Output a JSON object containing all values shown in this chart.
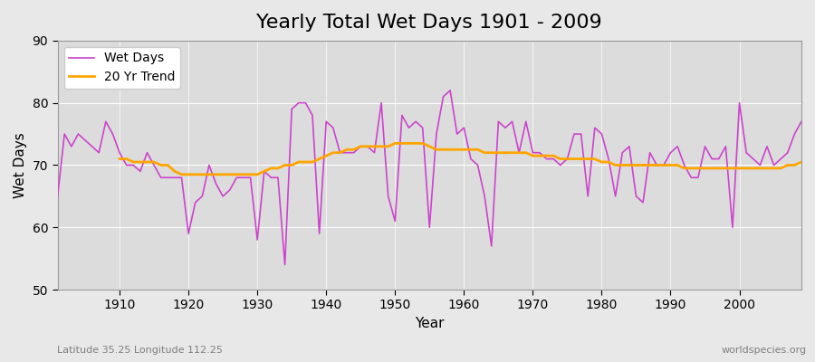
{
  "title": "Yearly Total Wet Days 1901 - 2009",
  "xlabel": "Year",
  "ylabel": "Wet Days",
  "subtitle": "Latitude 35.25 Longitude 112.25",
  "watermark": "worldspecies.org",
  "years": [
    1901,
    1902,
    1903,
    1904,
    1905,
    1906,
    1907,
    1908,
    1909,
    1910,
    1911,
    1912,
    1913,
    1914,
    1915,
    1916,
    1917,
    1918,
    1919,
    1920,
    1921,
    1922,
    1923,
    1924,
    1925,
    1926,
    1927,
    1928,
    1929,
    1930,
    1931,
    1932,
    1933,
    1934,
    1935,
    1936,
    1937,
    1938,
    1939,
    1940,
    1941,
    1942,
    1943,
    1944,
    1945,
    1946,
    1947,
    1948,
    1949,
    1950,
    1951,
    1952,
    1953,
    1954,
    1955,
    1956,
    1957,
    1958,
    1959,
    1960,
    1961,
    1962,
    1963,
    1964,
    1965,
    1966,
    1967,
    1968,
    1969,
    1970,
    1971,
    1972,
    1973,
    1974,
    1975,
    1976,
    1977,
    1978,
    1979,
    1980,
    1981,
    1982,
    1983,
    1984,
    1985,
    1986,
    1987,
    1988,
    1989,
    1990,
    1991,
    1992,
    1993,
    1994,
    1995,
    1996,
    1997,
    1998,
    1999,
    2000,
    2001,
    2002,
    2003,
    2004,
    2005,
    2006,
    2007,
    2008,
    2009
  ],
  "wet_days": [
    65,
    75,
    73,
    75,
    74,
    73,
    72,
    77,
    75,
    72,
    70,
    70,
    69,
    72,
    70,
    68,
    68,
    68,
    68,
    59,
    64,
    65,
    70,
    67,
    65,
    66,
    68,
    68,
    68,
    58,
    69,
    68,
    68,
    54,
    79,
    80,
    80,
    78,
    59,
    77,
    76,
    72,
    72,
    72,
    73,
    73,
    72,
    80,
    65,
    61,
    78,
    76,
    77,
    76,
    60,
    75,
    81,
    82,
    75,
    76,
    71,
    70,
    65,
    57,
    77,
    76,
    77,
    72,
    77,
    72,
    72,
    71,
    71,
    70,
    71,
    75,
    75,
    65,
    76,
    75,
    71,
    65,
    72,
    73,
    65,
    64,
    72,
    70,
    70,
    72,
    73,
    70,
    68,
    68,
    73,
    71,
    71,
    73,
    60,
    80,
    72,
    71,
    70,
    73,
    70,
    71,
    72,
    75,
    77
  ],
  "trend_years": [
    1910,
    1911,
    1912,
    1913,
    1914,
    1915,
    1916,
    1917,
    1918,
    1919,
    1920,
    1921,
    1922,
    1923,
    1924,
    1925,
    1926,
    1927,
    1928,
    1929,
    1930,
    1931,
    1932,
    1933,
    1934,
    1935,
    1936,
    1937,
    1938,
    1939,
    1940,
    1941,
    1942,
    1943,
    1944,
    1945,
    1946,
    1947,
    1948,
    1949,
    1950,
    1951,
    1952,
    1953,
    1954,
    1955,
    1956,
    1957,
    1958,
    1959,
    1960,
    1961,
    1962,
    1963,
    1964,
    1965,
    1966,
    1967,
    1968,
    1969,
    1970,
    1971,
    1972,
    1973,
    1974,
    1975,
    1976,
    1977,
    1978,
    1979,
    1980,
    1981,
    1982,
    1983,
    1984,
    1985,
    1986,
    1987,
    1988,
    1989,
    1990,
    1991,
    1992,
    1993,
    1994,
    1995,
    1996,
    1997,
    1998,
    1999,
    2000,
    2001,
    2002,
    2003,
    2004,
    2005,
    2006,
    2007,
    2008,
    2009
  ],
  "trend_values": [
    71.0,
    71.0,
    70.5,
    70.5,
    70.5,
    70.5,
    70.0,
    70.0,
    69.0,
    68.5,
    68.5,
    68.5,
    68.5,
    68.5,
    68.5,
    68.5,
    68.5,
    68.5,
    68.5,
    68.5,
    68.5,
    69.0,
    69.5,
    69.5,
    70.0,
    70.0,
    70.5,
    70.5,
    70.5,
    71.0,
    71.5,
    72.0,
    72.0,
    72.5,
    72.5,
    73.0,
    73.0,
    73.0,
    73.0,
    73.0,
    73.5,
    73.5,
    73.5,
    73.5,
    73.5,
    73.0,
    72.5,
    72.5,
    72.5,
    72.5,
    72.5,
    72.5,
    72.5,
    72.0,
    72.0,
    72.0,
    72.0,
    72.0,
    72.0,
    72.0,
    71.5,
    71.5,
    71.5,
    71.5,
    71.0,
    71.0,
    71.0,
    71.0,
    71.0,
    71.0,
    70.5,
    70.5,
    70.0,
    70.0,
    70.0,
    70.0,
    70.0,
    70.0,
    70.0,
    70.0,
    70.0,
    70.0,
    69.5,
    69.5,
    69.5,
    69.5,
    69.5,
    69.5,
    69.5,
    69.5,
    69.5,
    69.5,
    69.5,
    69.5,
    69.5,
    69.5,
    69.5,
    70.0,
    70.0,
    70.5
  ],
  "wet_days_color": "#CC44CC",
  "trend_color": "#FFA500",
  "background_color": "#E8E8E8",
  "plot_bg_color": "#DCDCDC",
  "grid_color": "#FFFFFF",
  "ylim": [
    50,
    90
  ],
  "yticks": [
    50,
    60,
    70,
    80,
    90
  ],
  "xlim": [
    1901,
    2009
  ],
  "xticks": [
    1910,
    1920,
    1930,
    1940,
    1950,
    1960,
    1970,
    1980,
    1990,
    2000
  ],
  "title_fontsize": 16,
  "label_fontsize": 11,
  "tick_fontsize": 10,
  "legend_fontsize": 10,
  "wet_days_linewidth": 1.2,
  "trend_linewidth": 2.0
}
